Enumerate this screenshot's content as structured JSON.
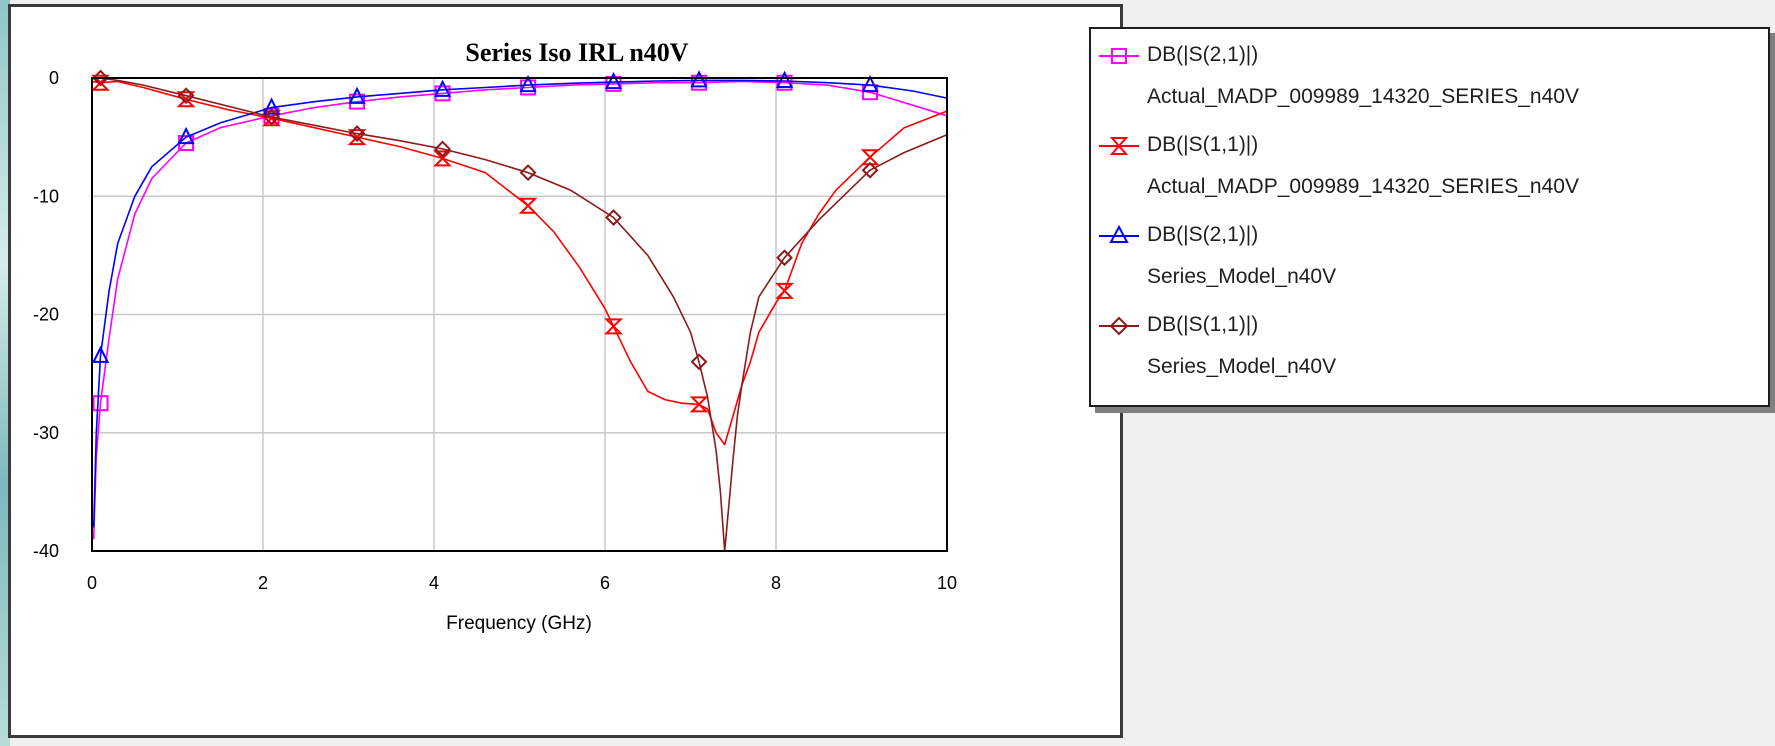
{
  "colors": {
    "pink": "#ff00ff",
    "red": "#ff0000",
    "blue": "#0000ff",
    "maroon": "#8b1a1a",
    "grid": "#c8c8c8"
  },
  "chart_data": {
    "type": "line",
    "title": "Series Iso IRL n40V",
    "xlabel": "Frequency (GHz)",
    "ylabel": "",
    "xlim": [
      0,
      10
    ],
    "ylim": [
      -40,
      0
    ],
    "xticks": [
      0,
      2,
      4,
      6,
      8,
      10
    ],
    "yticks": [
      0,
      -10,
      -20,
      -30,
      -40
    ],
    "grid": true,
    "legend_position": "right",
    "series": [
      {
        "name": "DB(|S(2,1)|)",
        "source": "Actual_MADP_009989_14320_SERIES_n40V",
        "color": "pink",
        "marker": "square",
        "x": [
          0.02,
          0.05,
          0.1,
          0.2,
          0.3,
          0.5,
          0.7,
          1.1,
          1.5,
          2.1,
          2.6,
          3.1,
          3.6,
          4.1,
          4.6,
          5.1,
          5.6,
          6.1,
          6.6,
          7.1,
          7.6,
          8.1,
          8.6,
          9.1,
          9.6,
          10.0
        ],
        "y": [
          -39,
          -32,
          -27.5,
          -22,
          -17,
          -11.5,
          -8.5,
          -5.5,
          -4.2,
          -3.2,
          -2.5,
          -2.0,
          -1.6,
          -1.3,
          -1.0,
          -0.8,
          -0.6,
          -0.5,
          -0.4,
          -0.4,
          -0.3,
          -0.4,
          -0.6,
          -1.2,
          -2.3,
          -3.2
        ],
        "markers_x": [
          0.1,
          1.1,
          2.1,
          3.1,
          4.1,
          5.1,
          6.1,
          7.1,
          8.1,
          9.1
        ]
      },
      {
        "name": "DB(|S(1,1)|)",
        "source": "Actual_MADP_009989_14320_SERIES_n40V",
        "color": "red",
        "marker": "hourglass",
        "x": [
          0.0,
          0.1,
          0.3,
          0.6,
          1.1,
          1.6,
          2.1,
          2.6,
          3.1,
          3.6,
          4.1,
          4.6,
          5.1,
          5.4,
          5.7,
          6.0,
          6.1,
          6.3,
          6.5,
          6.7,
          6.9,
          7.1,
          7.2,
          7.3,
          7.4,
          7.5,
          7.6,
          7.7,
          7.8,
          8.0,
          8.1,
          8.3,
          8.5,
          8.7,
          9.1,
          9.5,
          10.0
        ],
        "y": [
          -0.3,
          -0.4,
          -0.3,
          -0.8,
          -1.8,
          -2.7,
          -3.4,
          -4.2,
          -5.0,
          -5.8,
          -6.8,
          -8.0,
          -10.8,
          -13.0,
          -16.0,
          -19.5,
          -21.0,
          -24.0,
          -26.5,
          -27.2,
          -27.5,
          -27.6,
          -28.0,
          -30.0,
          -31.0,
          -28.5,
          -26.0,
          -24.0,
          -21.5,
          -19.0,
          -18.0,
          -14.0,
          -11.5,
          -9.5,
          -6.7,
          -4.2,
          -2.8
        ],
        "markers_x": [
          0.1,
          1.1,
          2.1,
          3.1,
          4.1,
          5.1,
          6.1,
          7.1,
          8.1,
          9.1
        ]
      },
      {
        "name": "DB(|S(2,1)|)",
        "source": "Series_Model_n40V",
        "color": "blue",
        "marker": "triangle",
        "x": [
          0.02,
          0.05,
          0.1,
          0.2,
          0.3,
          0.5,
          0.7,
          1.1,
          1.5,
          2.1,
          2.6,
          3.1,
          3.6,
          4.1,
          4.6,
          5.1,
          5.6,
          6.1,
          6.6,
          7.1,
          7.6,
          8.1,
          8.6,
          9.1,
          9.6,
          10.0
        ],
        "y": [
          -38,
          -30,
          -23.5,
          -18,
          -14,
          -10,
          -7.5,
          -5.0,
          -3.8,
          -2.5,
          -2.0,
          -1.6,
          -1.3,
          -1.0,
          -0.8,
          -0.6,
          -0.45,
          -0.35,
          -0.25,
          -0.2,
          -0.2,
          -0.25,
          -0.4,
          -0.6,
          -1.1,
          -1.7
        ],
        "markers_x": [
          0.1,
          1.1,
          2.1,
          3.1,
          4.1,
          5.1,
          6.1,
          7.1,
          8.1,
          9.1
        ]
      },
      {
        "name": "DB(|S(1,1)|)",
        "source": "Series_Model_n40V",
        "color": "maroon",
        "marker": "diamond",
        "x": [
          0.0,
          0.1,
          0.3,
          0.6,
          1.1,
          1.6,
          2.1,
          2.6,
          3.1,
          3.6,
          4.1,
          4.6,
          5.1,
          5.6,
          6.1,
          6.5,
          6.8,
          7.0,
          7.1,
          7.2,
          7.3,
          7.35,
          7.4,
          7.45,
          7.5,
          7.55,
          7.6,
          7.7,
          7.8,
          8.1,
          8.5,
          9.1,
          9.5,
          10.0
        ],
        "y": [
          0.0,
          0.0,
          -0.2,
          -0.6,
          -1.5,
          -2.4,
          -3.3,
          -4.0,
          -4.7,
          -5.3,
          -6.0,
          -6.9,
          -8.0,
          -9.5,
          -11.8,
          -15.0,
          -18.5,
          -21.5,
          -24.0,
          -27.0,
          -31.5,
          -35.0,
          -40.0,
          -36.0,
          -32.0,
          -28.5,
          -26.0,
          -21.5,
          -18.5,
          -15.2,
          -12.0,
          -7.8,
          -6.3,
          -4.8
        ],
        "markers_x": [
          0.1,
          1.1,
          2.1,
          3.1,
          4.1,
          5.1,
          6.1,
          7.1,
          8.1,
          9.1
        ]
      }
    ]
  }
}
